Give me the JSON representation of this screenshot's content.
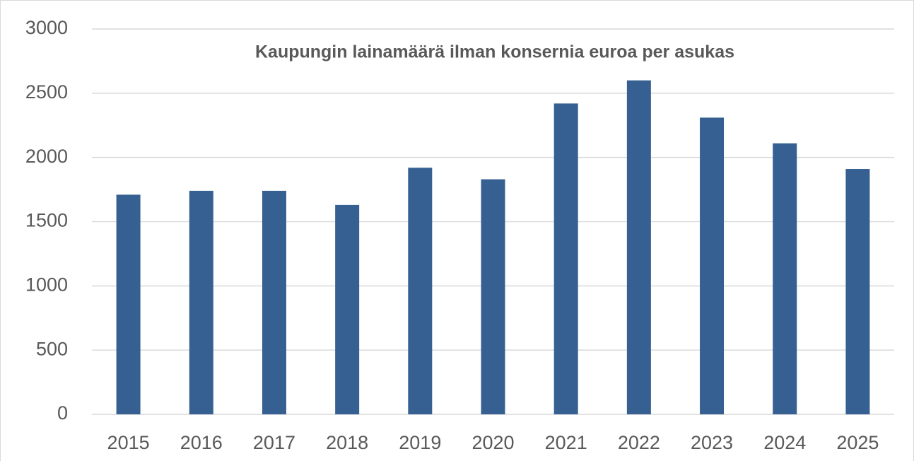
{
  "chart_data": {
    "type": "bar",
    "title": "Kaupungin lainamäärä ilman konsernia euroa per asukas",
    "categories": [
      "2015",
      "2016",
      "2017",
      "2018",
      "2019",
      "2020",
      "2021",
      "2022",
      "2023",
      "2024",
      "2025"
    ],
    "values": [
      1710,
      1740,
      1740,
      1630,
      1920,
      1830,
      2420,
      2600,
      2310,
      2110,
      1910
    ],
    "color": "#376092",
    "ylim": [
      0,
      3000
    ],
    "yticks": [
      0,
      500,
      1000,
      1500,
      2000,
      2500,
      3000
    ],
    "grid": true
  }
}
